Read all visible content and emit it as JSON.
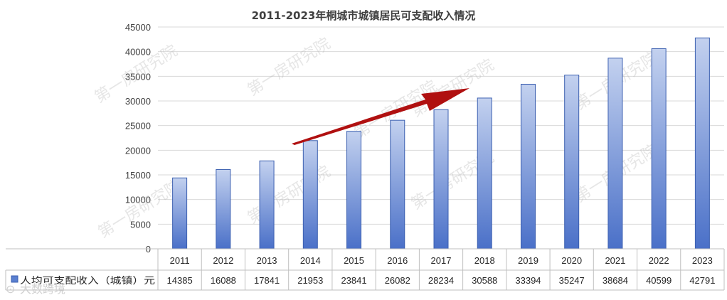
{
  "chart_data": {
    "type": "bar",
    "title": "2011-2023年桐城市城镇居民可支配收入情况",
    "categories": [
      "2011",
      "2012",
      "2013",
      "2014",
      "2015",
      "2016",
      "2017",
      "2018",
      "2019",
      "2020",
      "2021",
      "2022",
      "2023"
    ],
    "series": [
      {
        "name": "人均可支配收入（城镇）元",
        "values": [
          14385,
          16088,
          17841,
          21953,
          23841,
          26082,
          28234,
          30588,
          33394,
          35247,
          38684,
          40599,
          42791
        ]
      }
    ],
    "ylim": [
      0,
      45000
    ],
    "yticks": [
      0,
      5000,
      10000,
      15000,
      20000,
      25000,
      30000,
      35000,
      40000,
      45000
    ],
    "grid": true,
    "data_table": true,
    "legend_placement": "data-table-left",
    "annotation": "upward-trend-arrow",
    "colors": {
      "bar_top": "#b9c9ec",
      "bar_bottom": "#4a70c8",
      "bar_stroke": "#3b5fb0",
      "arrow": "#b01010",
      "grid": "#d9d9d9"
    }
  },
  "watermarks": [
    "第一房研究院",
    "第一房研究院",
    "第一房研究院",
    "第一房研究院",
    "第一房研究院",
    "第一房研究院",
    "第一房研究院",
    "第一房研究院",
    "第一房研究院"
  ],
  "corner_mark": "大数跨境"
}
